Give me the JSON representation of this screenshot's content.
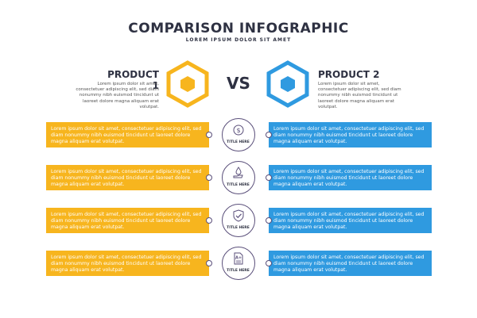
{
  "header": {
    "title": "COMPARISON INFOGRAPHIC",
    "subtitle": "LOREM IPSUM DOLOR SIT AMET"
  },
  "products": {
    "left": {
      "name": "PRODUCT 1",
      "description": "Lorem ipsum dolor sit amet, consectetuer adipiscing elit, sed diam nonummy nibh euismod tincidunt ut laoreet dolore magna aliquam erat volutpat.",
      "color": "#f7b51e"
    },
    "right": {
      "name": "PRODUCT 2",
      "description": "Lorem ipsum dolor sit amet, consectetuer adipiscing elit, sed diam nonummy nibh euismod tincidunt ut laoreet dolore magna aliquam erat volutpat.",
      "color": "#2f9ae0"
    },
    "vs": "VS"
  },
  "rows": [
    {
      "icon": "dollar-coin-icon",
      "title": "TITLE HERE",
      "left_text": "Lorem ipsum dolor sit amet, consectetuer adipiscing elit, sed diam nonummy nibh euismod tincidunt ut laoreet dolore magna aliquam erat volutpat.",
      "right_text": "Lorem ipsum dolor sit amet, consectetuer adipiscing elit, sed diam nonummy nibh euismod tincidunt ut laoreet dolore magna aliquam erat volutpat."
    },
    {
      "icon": "hand-water-drop-icon",
      "title": "TITLE HERE",
      "left_text": "Lorem ipsum dolor sit amet, consectetuer adipiscing elit, sed diam nonummy nibh euismod tincidunt ut laoreet dolore magna aliquam erat volutpat.",
      "right_text": "Lorem ipsum dolor sit amet, consectetuer adipiscing elit, sed diam nonummy nibh euismod tincidunt ut laoreet dolore magna aliquam erat volutpat."
    },
    {
      "icon": "shield-check-icon",
      "title": "TITLE HERE",
      "left_text": "Lorem ipsum dolor sit amet, consectetuer adipiscing elit, sed diam nonummy nibh euismod tincidunt ut laoreet dolore magna aliquam erat volutpat.",
      "right_text": "Lorem ipsum dolor sit amet, consectetuer adipiscing elit, sed diam nonummy nibh euismod tincidunt ut laoreet dolore magna aliquam erat volutpat."
    },
    {
      "icon": "grade-document-icon",
      "icon_text": "A+",
      "title": "TITLE HERE",
      "left_text": "Lorem ipsum dolor sit amet, consectetuer adipiscing elit, sed diam nonummy nibh euismod tincidunt ut laoreet dolore magna aliquam erat volutpat.",
      "right_text": "Lorem ipsum dolor sit amet, consectetuer adipiscing elit, sed diam nonummy nibh euismod tincidunt ut laoreet dolore magna aliquam erat volutpat."
    }
  ]
}
